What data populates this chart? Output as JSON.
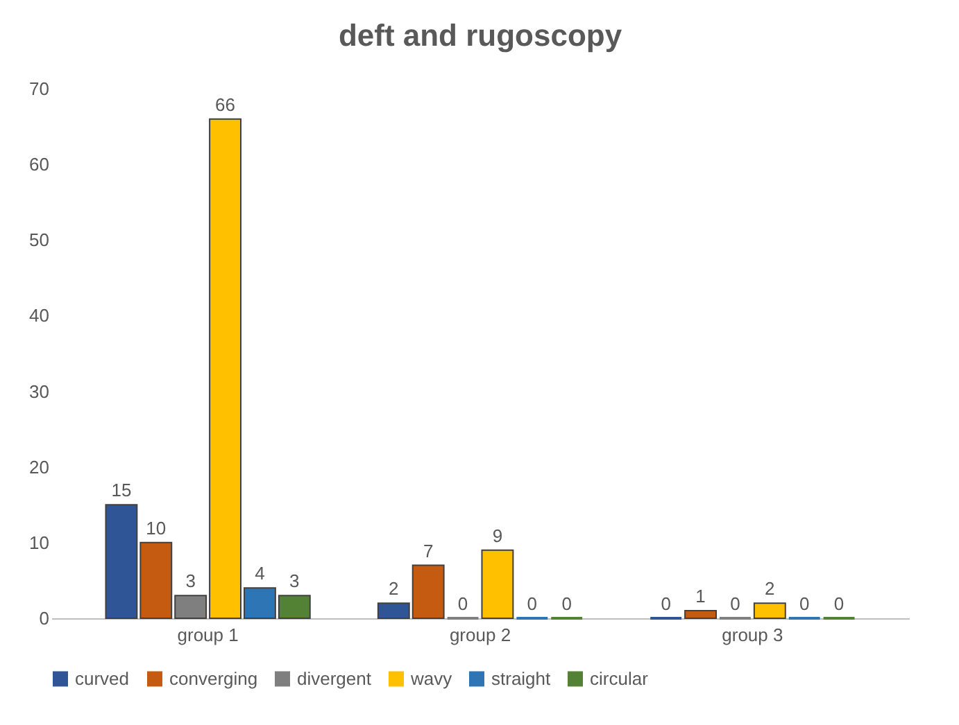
{
  "chart_data": {
    "type": "bar",
    "title": "deft and rugoscopy",
    "categories": [
      "group 1",
      "group 2",
      "group 3"
    ],
    "series": [
      {
        "name": "curved",
        "color": "#2f5597",
        "values": [
          15,
          2,
          0
        ]
      },
      {
        "name": "converging",
        "color": "#c55a11",
        "values": [
          10,
          7,
          1
        ]
      },
      {
        "name": "divergent",
        "color": "#7f7f7f",
        "values": [
          3,
          0,
          0
        ]
      },
      {
        "name": "wavy",
        "color": "#ffc000",
        "values": [
          66,
          9,
          2
        ]
      },
      {
        "name": "straight",
        "color": "#2e75b6",
        "values": [
          4,
          0,
          0
        ]
      },
      {
        "name": "circular",
        "color": "#548235",
        "values": [
          3,
          0,
          0
        ]
      }
    ],
    "ylim": [
      0,
      70
    ],
    "yticks": [
      0,
      10,
      20,
      30,
      40,
      50,
      60,
      70
    ],
    "grid": false,
    "legend": "bottom",
    "data_labels": true
  }
}
